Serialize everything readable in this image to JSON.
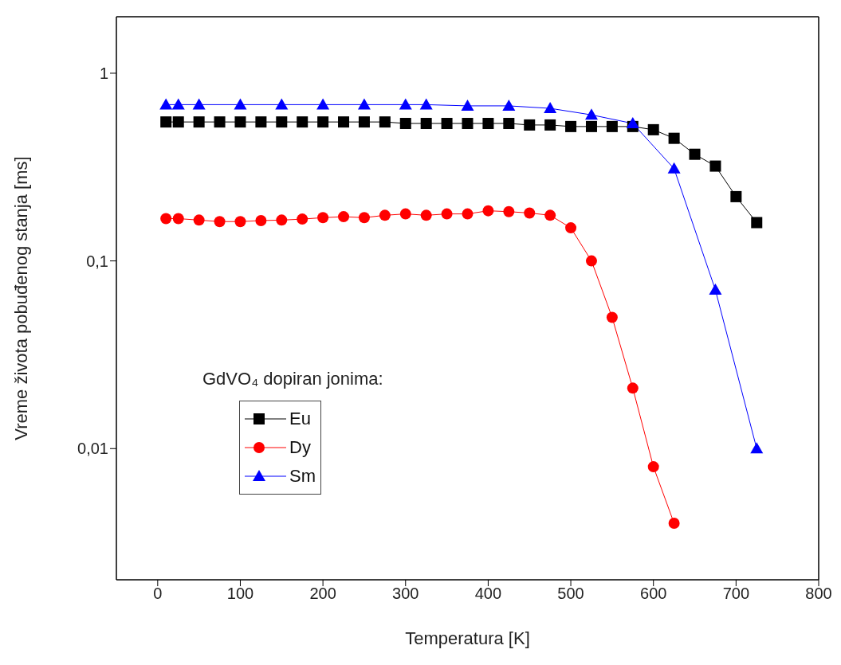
{
  "chart_data": {
    "type": "line",
    "xlabel": "Temperatura [K]",
    "ylabel": "Vreme života pobuđenog stanja [ms]",
    "legend_title": "GdVO₄ dopiran jonima:",
    "legend": "bottom left",
    "log": "y",
    "xlim": [
      -50,
      800
    ],
    "xticks": [
      0,
      100,
      200,
      300,
      400,
      500,
      600,
      700,
      800
    ],
    "ylim": [
      0.002,
      2
    ],
    "yticks": [
      {
        "value": 0.01,
        "label": "0,01"
      },
      {
        "value": 0.1,
        "label": "0,1"
      },
      1
    ],
    "series": [
      {
        "name": "Eu",
        "color": "#000000",
        "marker": "square",
        "x": [
          10,
          25,
          50,
          75,
          100,
          125,
          150,
          175,
          200,
          225,
          250,
          275,
          300,
          325,
          350,
          375,
          400,
          425,
          450,
          475,
          500,
          525,
          550,
          575,
          600,
          625,
          650,
          675,
          700,
          725
        ],
        "values": [
          0.55,
          0.55,
          0.55,
          0.55,
          0.55,
          0.55,
          0.55,
          0.55,
          0.55,
          0.55,
          0.55,
          0.55,
          0.54,
          0.54,
          0.54,
          0.54,
          0.54,
          0.54,
          0.53,
          0.53,
          0.52,
          0.52,
          0.52,
          0.52,
          0.5,
          0.45,
          0.37,
          0.32,
          0.22,
          0.16
        ]
      },
      {
        "name": "Dy",
        "color": "#ff0000",
        "marker": "circle",
        "x": [
          10,
          25,
          50,
          75,
          100,
          125,
          150,
          175,
          200,
          225,
          250,
          275,
          300,
          325,
          350,
          375,
          400,
          425,
          450,
          475,
          500,
          525,
          550,
          575,
          600,
          625
        ],
        "values": [
          0.168,
          0.168,
          0.165,
          0.162,
          0.162,
          0.164,
          0.165,
          0.167,
          0.17,
          0.172,
          0.17,
          0.175,
          0.178,
          0.175,
          0.178,
          0.178,
          0.185,
          0.183,
          0.18,
          0.175,
          0.15,
          0.1,
          0.05,
          0.021,
          0.008,
          0.004
        ]
      },
      {
        "name": "Sm",
        "color": "#0000ff",
        "marker": "triangle",
        "x": [
          10,
          25,
          50,
          100,
          150,
          200,
          250,
          300,
          325,
          375,
          425,
          475,
          525,
          575,
          625,
          675,
          725
        ],
        "values": [
          0.68,
          0.68,
          0.68,
          0.68,
          0.68,
          0.68,
          0.68,
          0.68,
          0.68,
          0.67,
          0.67,
          0.65,
          0.6,
          0.54,
          0.31,
          0.07,
          0.01
        ]
      }
    ]
  }
}
